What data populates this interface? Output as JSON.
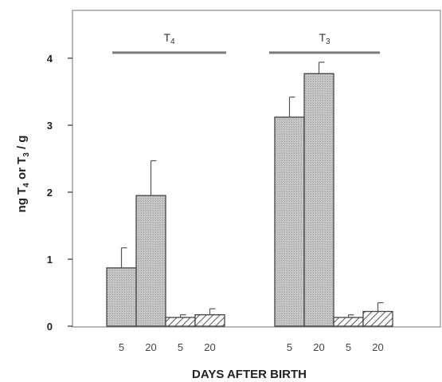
{
  "chart_data": {
    "type": "bar",
    "xlabel": "DAYS AFTER BIRTH",
    "ylabel": "ng T4 or T3 / g",
    "ylim": [
      0,
      4.5
    ],
    "yticks": [
      0,
      1,
      2,
      3,
      4
    ],
    "grid": false,
    "groups": [
      {
        "label": "T4",
        "bars": [
          {
            "day": "5",
            "value": 0.87,
            "error": 0.3,
            "pattern": "stipple"
          },
          {
            "day": "20",
            "value": 1.95,
            "error": 0.52,
            "pattern": "stipple"
          },
          {
            "day": "5",
            "value": 0.13,
            "error": 0.04,
            "pattern": "hatched"
          },
          {
            "day": "20",
            "value": 0.17,
            "error": 0.09,
            "pattern": "hatched"
          }
        ]
      },
      {
        "label": "T3",
        "bars": [
          {
            "day": "5",
            "value": 3.12,
            "error": 0.3,
            "pattern": "stipple"
          },
          {
            "day": "20",
            "value": 3.77,
            "error": 0.17,
            "pattern": "stipple"
          },
          {
            "day": "5",
            "value": 0.13,
            "error": 0.04,
            "pattern": "hatched"
          },
          {
            "day": "20",
            "value": 0.22,
            "error": 0.13,
            "pattern": "hatched"
          }
        ]
      }
    ],
    "colors": {
      "stipple": "#c4c4c4",
      "hatched_line": "#555555",
      "frame": "#8a8a8a",
      "bar_line": "#444444"
    }
  }
}
